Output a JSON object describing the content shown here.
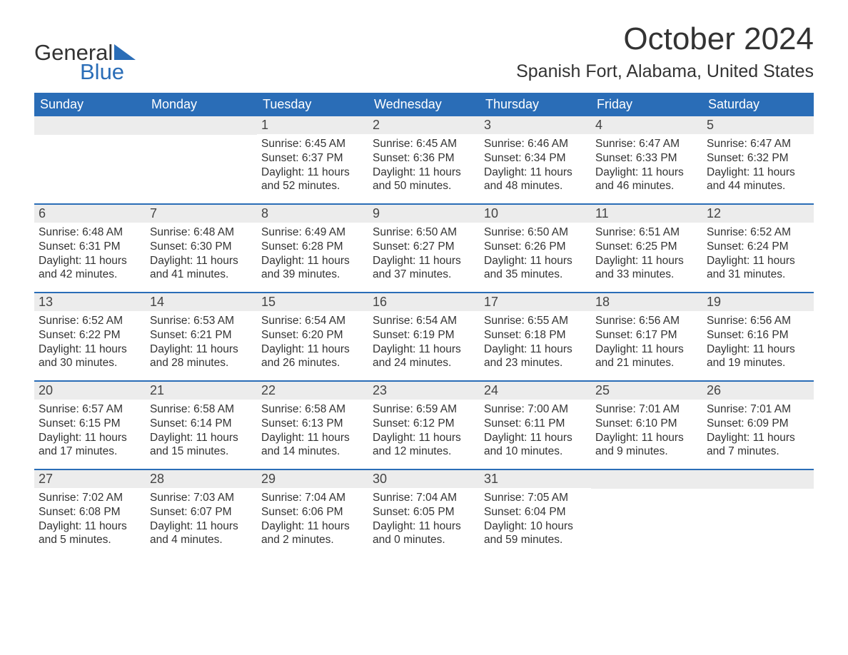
{
  "logo": {
    "text_top": "General",
    "text_bottom": "Blue",
    "triangle_color": "#2a6db7"
  },
  "header": {
    "month_title": "October 2024",
    "location": "Spanish Fort, Alabama, United States"
  },
  "style": {
    "header_bg": "#2a6db7",
    "header_text": "#ffffff",
    "daynum_bg": "#ececec",
    "divider_color": "#2a6db7",
    "body_text": "#333333",
    "page_bg": "#ffffff"
  },
  "weekdays": [
    "Sunday",
    "Monday",
    "Tuesday",
    "Wednesday",
    "Thursday",
    "Friday",
    "Saturday"
  ],
  "weeks": [
    [
      {
        "day": null
      },
      {
        "day": null
      },
      {
        "day": "1",
        "sunrise": "Sunrise: 6:45 AM",
        "sunset": "Sunset: 6:37 PM",
        "daylight1": "Daylight: 11 hours",
        "daylight2": "and 52 minutes."
      },
      {
        "day": "2",
        "sunrise": "Sunrise: 6:45 AM",
        "sunset": "Sunset: 6:36 PM",
        "daylight1": "Daylight: 11 hours",
        "daylight2": "and 50 minutes."
      },
      {
        "day": "3",
        "sunrise": "Sunrise: 6:46 AM",
        "sunset": "Sunset: 6:34 PM",
        "daylight1": "Daylight: 11 hours",
        "daylight2": "and 48 minutes."
      },
      {
        "day": "4",
        "sunrise": "Sunrise: 6:47 AM",
        "sunset": "Sunset: 6:33 PM",
        "daylight1": "Daylight: 11 hours",
        "daylight2": "and 46 minutes."
      },
      {
        "day": "5",
        "sunrise": "Sunrise: 6:47 AM",
        "sunset": "Sunset: 6:32 PM",
        "daylight1": "Daylight: 11 hours",
        "daylight2": "and 44 minutes."
      }
    ],
    [
      {
        "day": "6",
        "sunrise": "Sunrise: 6:48 AM",
        "sunset": "Sunset: 6:31 PM",
        "daylight1": "Daylight: 11 hours",
        "daylight2": "and 42 minutes."
      },
      {
        "day": "7",
        "sunrise": "Sunrise: 6:48 AM",
        "sunset": "Sunset: 6:30 PM",
        "daylight1": "Daylight: 11 hours",
        "daylight2": "and 41 minutes."
      },
      {
        "day": "8",
        "sunrise": "Sunrise: 6:49 AM",
        "sunset": "Sunset: 6:28 PM",
        "daylight1": "Daylight: 11 hours",
        "daylight2": "and 39 minutes."
      },
      {
        "day": "9",
        "sunrise": "Sunrise: 6:50 AM",
        "sunset": "Sunset: 6:27 PM",
        "daylight1": "Daylight: 11 hours",
        "daylight2": "and 37 minutes."
      },
      {
        "day": "10",
        "sunrise": "Sunrise: 6:50 AM",
        "sunset": "Sunset: 6:26 PM",
        "daylight1": "Daylight: 11 hours",
        "daylight2": "and 35 minutes."
      },
      {
        "day": "11",
        "sunrise": "Sunrise: 6:51 AM",
        "sunset": "Sunset: 6:25 PM",
        "daylight1": "Daylight: 11 hours",
        "daylight2": "and 33 minutes."
      },
      {
        "day": "12",
        "sunrise": "Sunrise: 6:52 AM",
        "sunset": "Sunset: 6:24 PM",
        "daylight1": "Daylight: 11 hours",
        "daylight2": "and 31 minutes."
      }
    ],
    [
      {
        "day": "13",
        "sunrise": "Sunrise: 6:52 AM",
        "sunset": "Sunset: 6:22 PM",
        "daylight1": "Daylight: 11 hours",
        "daylight2": "and 30 minutes."
      },
      {
        "day": "14",
        "sunrise": "Sunrise: 6:53 AM",
        "sunset": "Sunset: 6:21 PM",
        "daylight1": "Daylight: 11 hours",
        "daylight2": "and 28 minutes."
      },
      {
        "day": "15",
        "sunrise": "Sunrise: 6:54 AM",
        "sunset": "Sunset: 6:20 PM",
        "daylight1": "Daylight: 11 hours",
        "daylight2": "and 26 minutes."
      },
      {
        "day": "16",
        "sunrise": "Sunrise: 6:54 AM",
        "sunset": "Sunset: 6:19 PM",
        "daylight1": "Daylight: 11 hours",
        "daylight2": "and 24 minutes."
      },
      {
        "day": "17",
        "sunrise": "Sunrise: 6:55 AM",
        "sunset": "Sunset: 6:18 PM",
        "daylight1": "Daylight: 11 hours",
        "daylight2": "and 23 minutes."
      },
      {
        "day": "18",
        "sunrise": "Sunrise: 6:56 AM",
        "sunset": "Sunset: 6:17 PM",
        "daylight1": "Daylight: 11 hours",
        "daylight2": "and 21 minutes."
      },
      {
        "day": "19",
        "sunrise": "Sunrise: 6:56 AM",
        "sunset": "Sunset: 6:16 PM",
        "daylight1": "Daylight: 11 hours",
        "daylight2": "and 19 minutes."
      }
    ],
    [
      {
        "day": "20",
        "sunrise": "Sunrise: 6:57 AM",
        "sunset": "Sunset: 6:15 PM",
        "daylight1": "Daylight: 11 hours",
        "daylight2": "and 17 minutes."
      },
      {
        "day": "21",
        "sunrise": "Sunrise: 6:58 AM",
        "sunset": "Sunset: 6:14 PM",
        "daylight1": "Daylight: 11 hours",
        "daylight2": "and 15 minutes."
      },
      {
        "day": "22",
        "sunrise": "Sunrise: 6:58 AM",
        "sunset": "Sunset: 6:13 PM",
        "daylight1": "Daylight: 11 hours",
        "daylight2": "and 14 minutes."
      },
      {
        "day": "23",
        "sunrise": "Sunrise: 6:59 AM",
        "sunset": "Sunset: 6:12 PM",
        "daylight1": "Daylight: 11 hours",
        "daylight2": "and 12 minutes."
      },
      {
        "day": "24",
        "sunrise": "Sunrise: 7:00 AM",
        "sunset": "Sunset: 6:11 PM",
        "daylight1": "Daylight: 11 hours",
        "daylight2": "and 10 minutes."
      },
      {
        "day": "25",
        "sunrise": "Sunrise: 7:01 AM",
        "sunset": "Sunset: 6:10 PM",
        "daylight1": "Daylight: 11 hours",
        "daylight2": "and 9 minutes."
      },
      {
        "day": "26",
        "sunrise": "Sunrise: 7:01 AM",
        "sunset": "Sunset: 6:09 PM",
        "daylight1": "Daylight: 11 hours",
        "daylight2": "and 7 minutes."
      }
    ],
    [
      {
        "day": "27",
        "sunrise": "Sunrise: 7:02 AM",
        "sunset": "Sunset: 6:08 PM",
        "daylight1": "Daylight: 11 hours",
        "daylight2": "and 5 minutes."
      },
      {
        "day": "28",
        "sunrise": "Sunrise: 7:03 AM",
        "sunset": "Sunset: 6:07 PM",
        "daylight1": "Daylight: 11 hours",
        "daylight2": "and 4 minutes."
      },
      {
        "day": "29",
        "sunrise": "Sunrise: 7:04 AM",
        "sunset": "Sunset: 6:06 PM",
        "daylight1": "Daylight: 11 hours",
        "daylight2": "and 2 minutes."
      },
      {
        "day": "30",
        "sunrise": "Sunrise: 7:04 AM",
        "sunset": "Sunset: 6:05 PM",
        "daylight1": "Daylight: 11 hours",
        "daylight2": "and 0 minutes."
      },
      {
        "day": "31",
        "sunrise": "Sunrise: 7:05 AM",
        "sunset": "Sunset: 6:04 PM",
        "daylight1": "Daylight: 10 hours",
        "daylight2": "and 59 minutes."
      },
      {
        "day": null
      },
      {
        "day": null
      }
    ]
  ]
}
